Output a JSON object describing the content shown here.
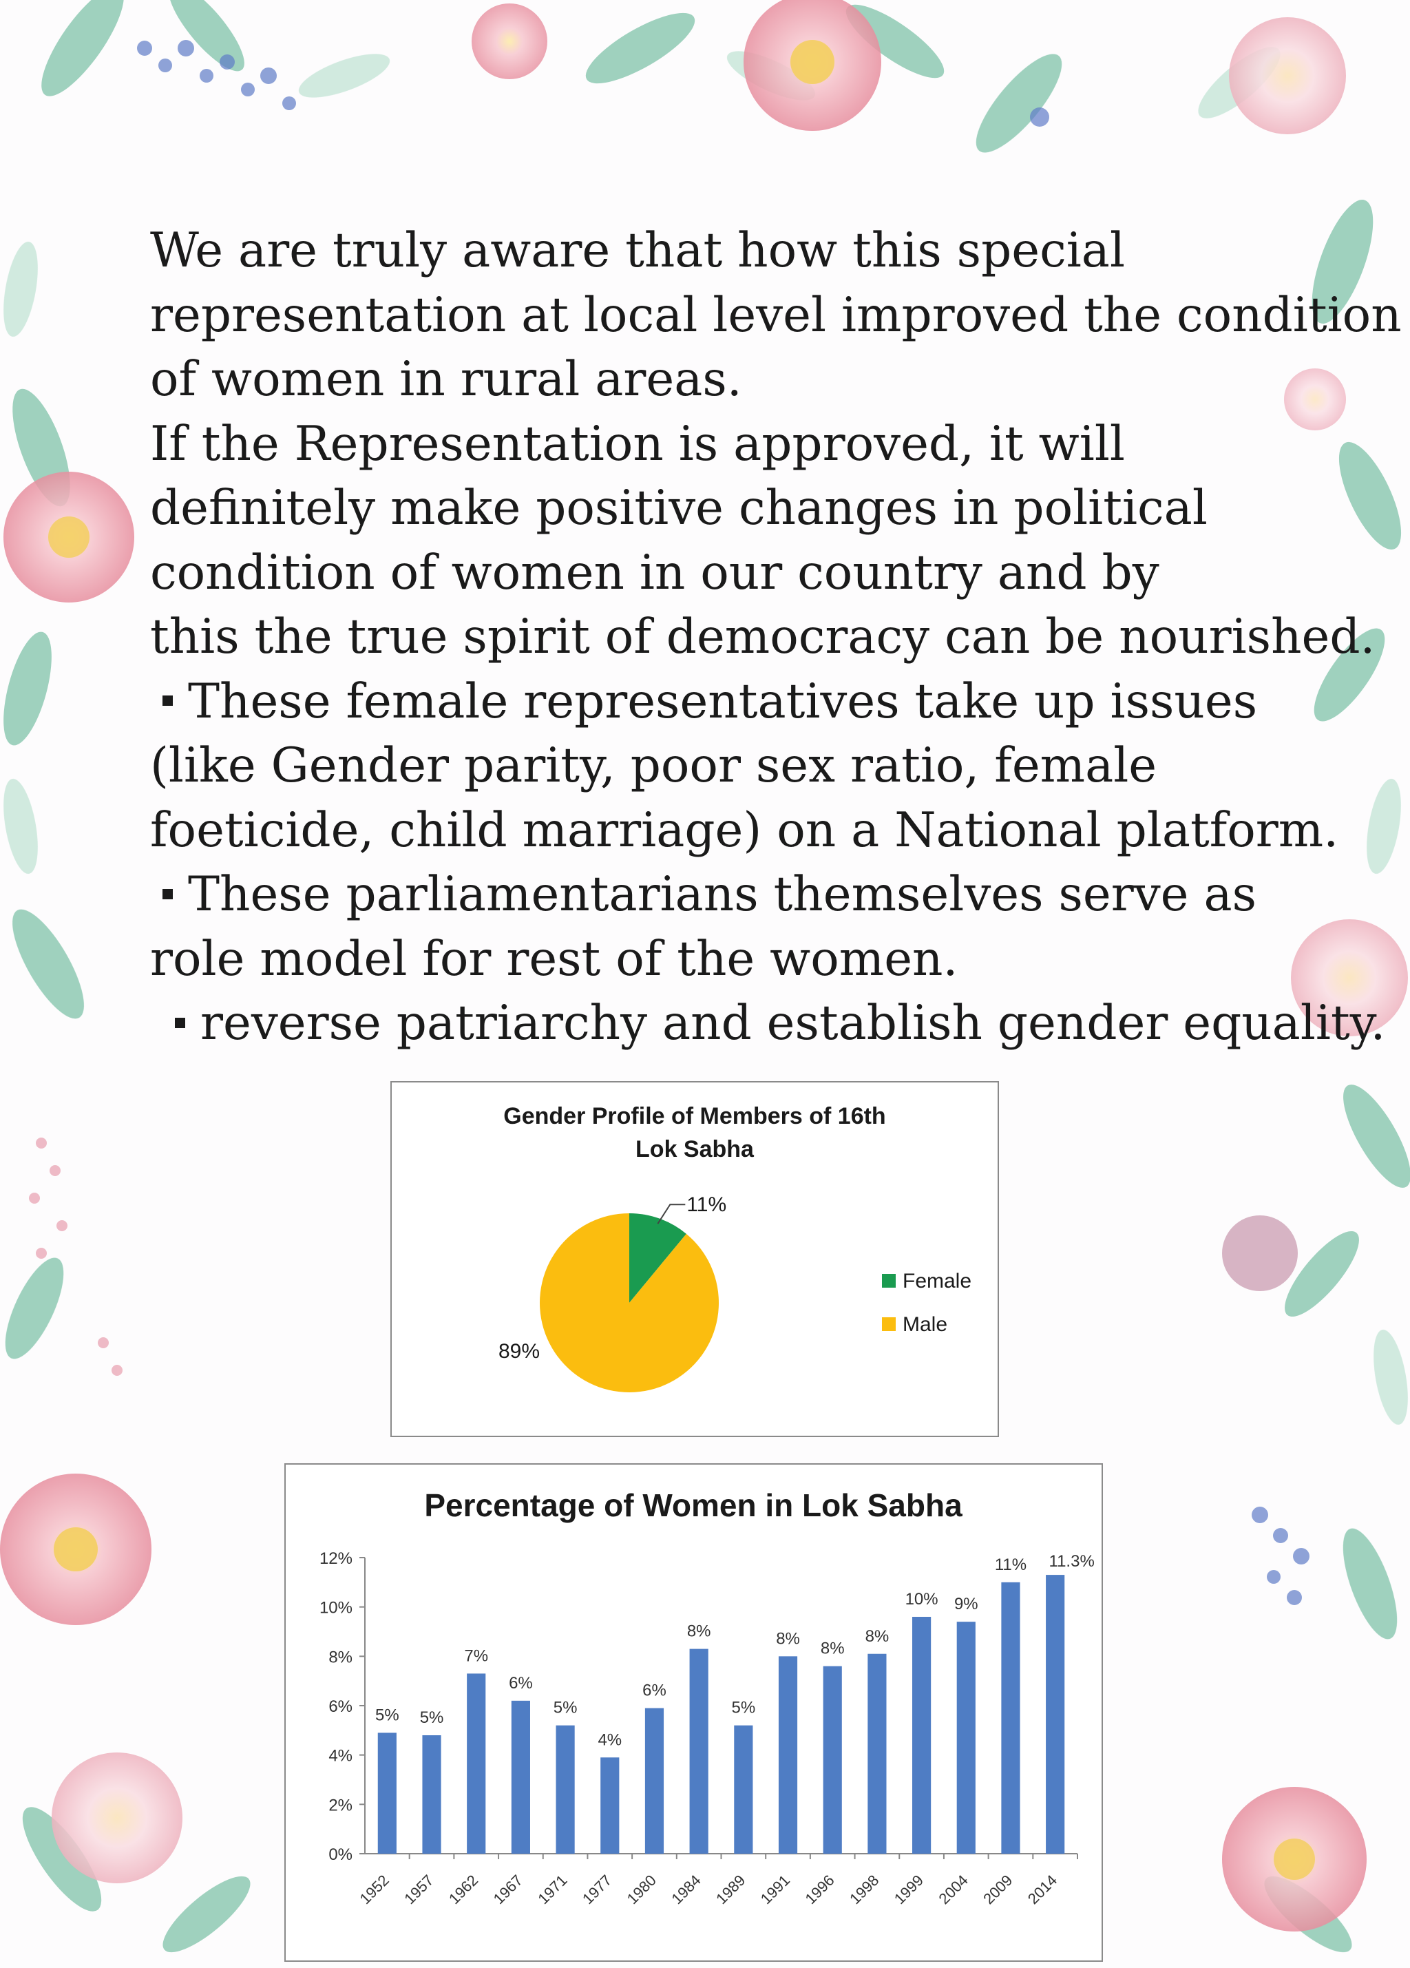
{
  "text": {
    "para1": [
      "We are truly aware that how this special",
      "representation at local level improved the condition",
      "of women in rural areas."
    ],
    "para2": [
      "If the Representation is approved, it will",
      "definitely make positive changes in political",
      "condition of  women in our country and by",
      "this the true spirit of democracy can be nourished."
    ],
    "bullet1": [
      "These female representatives take up issues",
      "(like Gender parity, poor sex ratio, female",
      "foeticide, child marriage) on a National platform."
    ],
    "bullet2": [
      "These parliamentarians themselves serve as",
      "role model for rest of the women."
    ],
    "bullet3": [
      "reverse patriarchy and establish gender equality."
    ]
  },
  "chart_data": [
    {
      "type": "pie",
      "title_lines": [
        "Gender Profile of Members of 16th",
        "Lok Sabha"
      ],
      "slices": [
        {
          "name": "Female",
          "value": 11,
          "label": "11%",
          "color": "#1a9b50"
        },
        {
          "name": "Male",
          "value": 89,
          "label": "89%",
          "color": "#fbbd0f"
        }
      ],
      "legend_placement": "right"
    },
    {
      "type": "bar",
      "title": "Percentage of Women in Lok Sabha",
      "categories": [
        "1952",
        "1957",
        "1962",
        "1967",
        "1971",
        "1977",
        "1980",
        "1984",
        "1989",
        "1991",
        "1996",
        "1998",
        "1999",
        "2004",
        "2009",
        "2014"
      ],
      "values": [
        4.9,
        4.8,
        7.3,
        6.2,
        5.2,
        3.9,
        5.9,
        8.3,
        5.2,
        8.0,
        7.6,
        8.1,
        9.6,
        9.4,
        11.0,
        11.3
      ],
      "data_labels": [
        "5%",
        "5%",
        "7%",
        "6%",
        "5%",
        "4%",
        "6%",
        "8%",
        "5%",
        "8%",
        "8%",
        "8%",
        "10%",
        "9%",
        "11%",
        "11.3%"
      ],
      "y_ticks": [
        "0%",
        "2%",
        "4%",
        "6%",
        "8%",
        "10%",
        "12%"
      ],
      "ylim": [
        0,
        12
      ],
      "bar_color": "#4f7dc4",
      "grid": false
    }
  ]
}
